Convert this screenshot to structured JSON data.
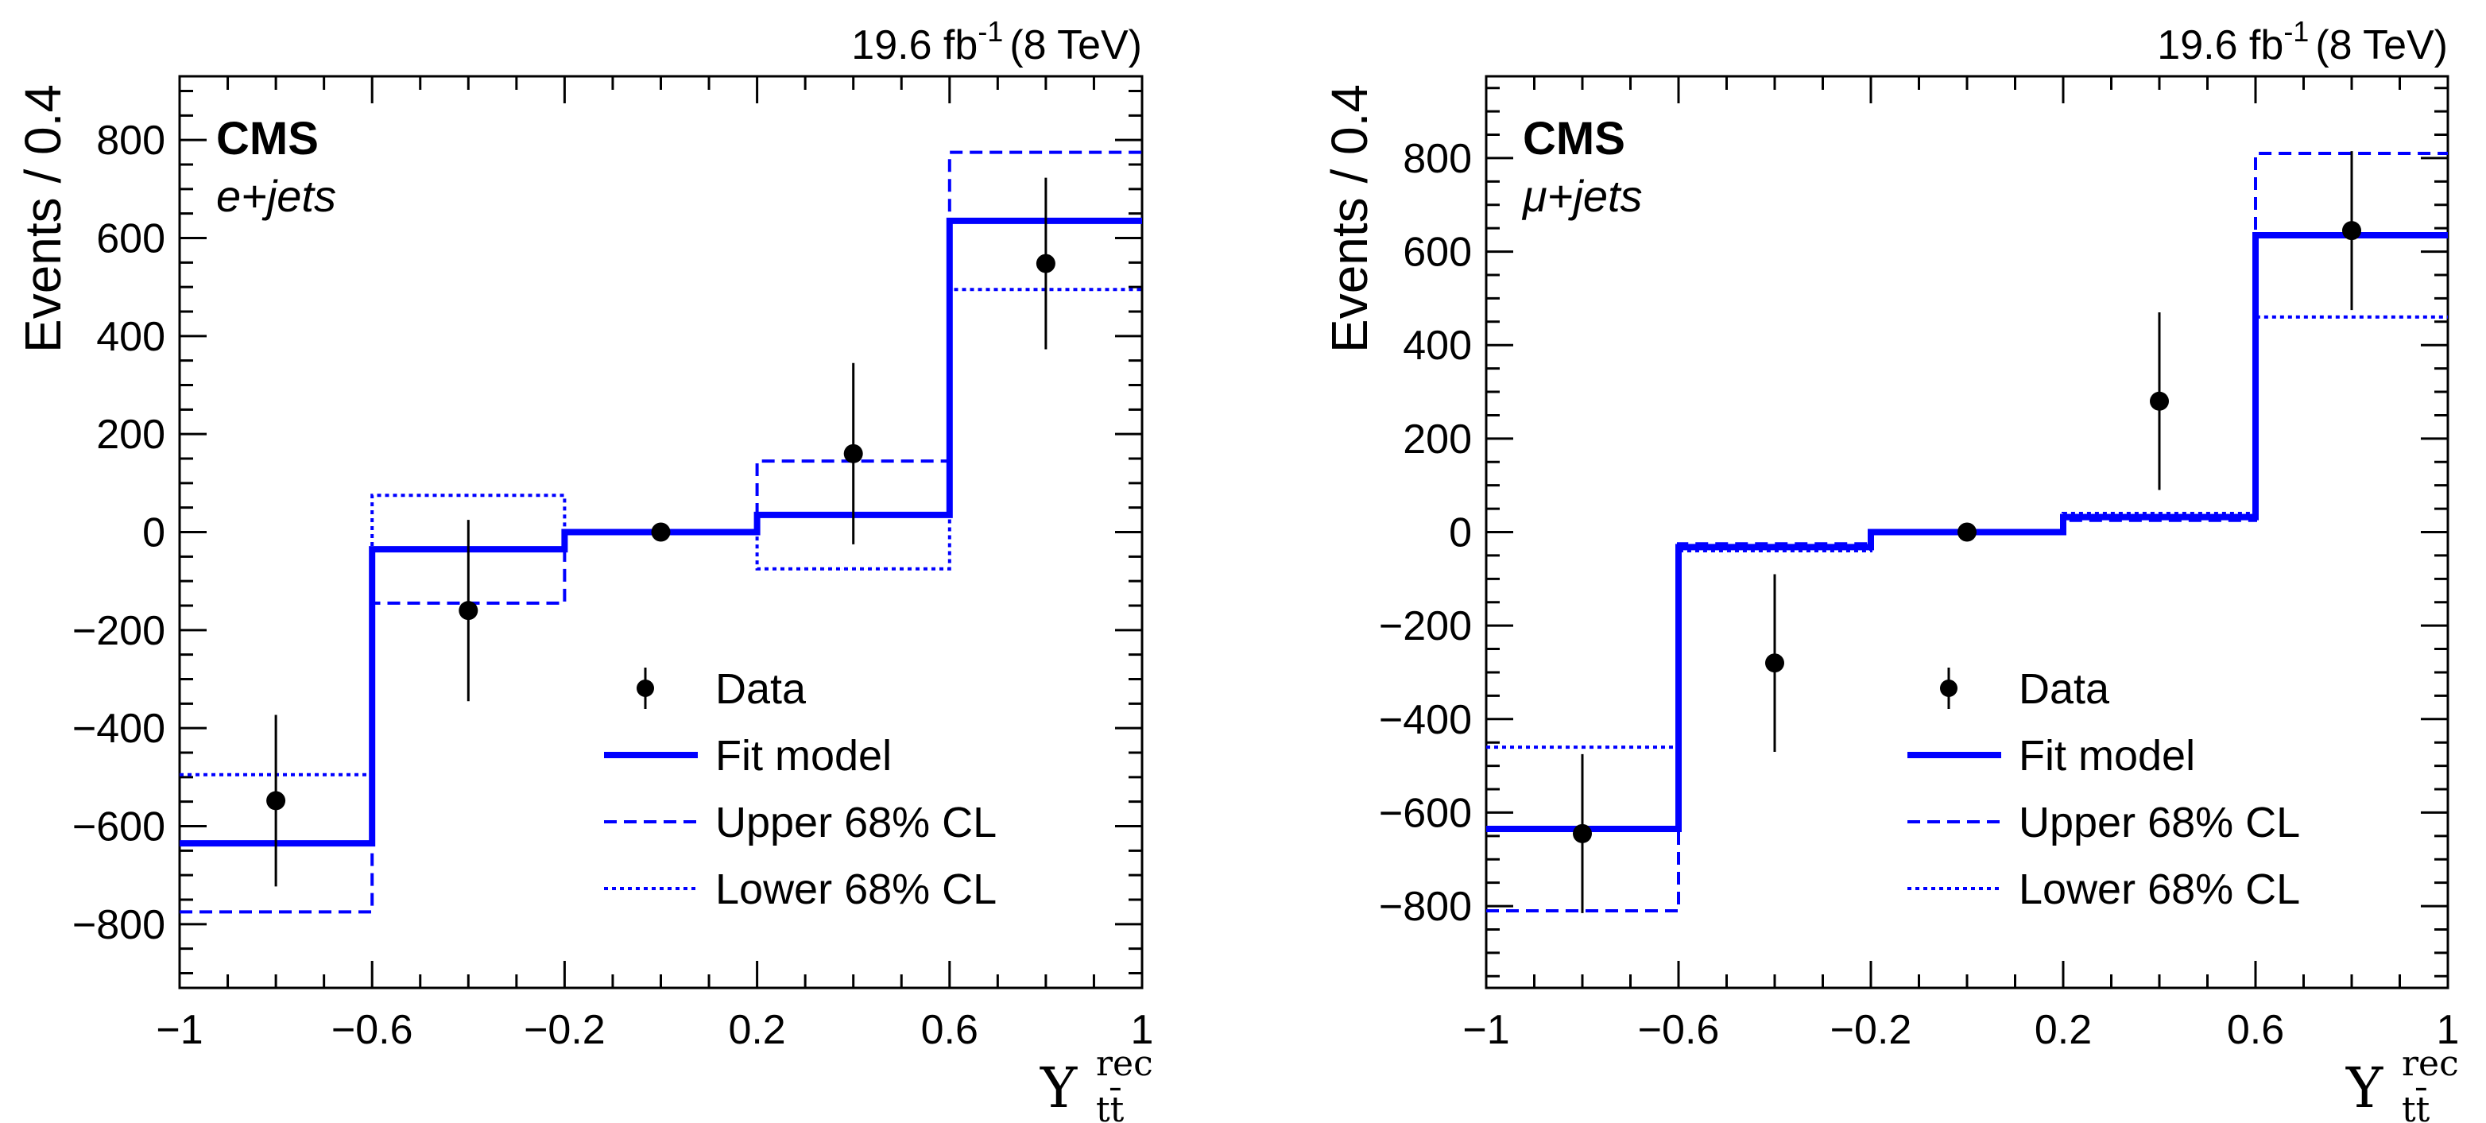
{
  "chart_data": [
    {
      "type": "step",
      "lumi_label": "19.6 fb",
      "lumi_exp": "-1",
      "lumi_energy": "(8 TeV)",
      "experiment": "CMS",
      "channel": "e+jets",
      "ylabel": "Events / 0.4",
      "xlabel": "Υ",
      "xlabel_sup": "rec",
      "xlabel_sub": "tt̄",
      "xlim": [
        -1,
        1
      ],
      "ylim": [
        -930,
        930
      ],
      "x_ticks": [
        "−1",
        "−0.6",
        "−0.2",
        "0.2",
        "0.6",
        "1"
      ],
      "y_ticks": [
        "−800",
        "−600",
        "−400",
        "−200",
        "0",
        "200",
        "400",
        "600",
        "800"
      ],
      "bin_edges": [
        -1,
        -0.6,
        -0.2,
        0.2,
        0.6,
        1
      ],
      "series": [
        {
          "name": "Fit model",
          "style": "solid",
          "color": "#0000ff",
          "values": [
            -635,
            -35,
            0,
            35,
            635
          ]
        },
        {
          "name": "Upper 68% CL",
          "style": "dashed",
          "color": "#0000ff",
          "values": [
            -775,
            -145,
            0,
            145,
            775
          ]
        },
        {
          "name": "Lower 68% CL",
          "style": "dotted",
          "color": "#0000ff",
          "values": [
            -495,
            75,
            0,
            -75,
            495
          ]
        }
      ],
      "data": {
        "name": "Data",
        "x": [
          -0.8,
          -0.4,
          0.0,
          0.4,
          0.8
        ],
        "y": [
          -548,
          -160,
          0,
          160,
          548
        ],
        "err": [
          175,
          185,
          0,
          185,
          175
        ]
      }
    },
    {
      "type": "step",
      "lumi_label": "19.6 fb",
      "lumi_exp": "-1",
      "lumi_energy": "(8 TeV)",
      "experiment": "CMS",
      "channel": "μ+jets",
      "ylabel": "Events / 0.4",
      "xlabel": "Υ",
      "xlabel_sup": "rec",
      "xlabel_sub": "tt̄",
      "xlim": [
        -1,
        1
      ],
      "ylim": [
        -975,
        975
      ],
      "x_ticks": [
        "−1",
        "−0.6",
        "−0.2",
        "0.2",
        "0.6",
        "1"
      ],
      "y_ticks": [
        "−800",
        "−600",
        "−400",
        "−200",
        "0",
        "200",
        "400",
        "600",
        "800"
      ],
      "bin_edges": [
        -1,
        -0.6,
        -0.2,
        0.2,
        0.6,
        1
      ],
      "series": [
        {
          "name": "Fit model",
          "style": "solid",
          "color": "#0000ff",
          "values": [
            -635,
            -32,
            0,
            32,
            635
          ]
        },
        {
          "name": "Upper 68% CL",
          "style": "dashed",
          "color": "#0000ff",
          "values": [
            -810,
            -25,
            0,
            25,
            810
          ]
        },
        {
          "name": "Lower 68% CL",
          "style": "dotted",
          "color": "#0000ff",
          "values": [
            -460,
            -40,
            0,
            40,
            460
          ]
        }
      ],
      "data": {
        "name": "Data",
        "x": [
          -0.8,
          -0.4,
          0.0,
          0.4,
          0.8
        ],
        "y": [
          -645,
          -280,
          0,
          280,
          645
        ],
        "err": [
          170,
          190,
          0,
          190,
          170
        ]
      }
    }
  ]
}
